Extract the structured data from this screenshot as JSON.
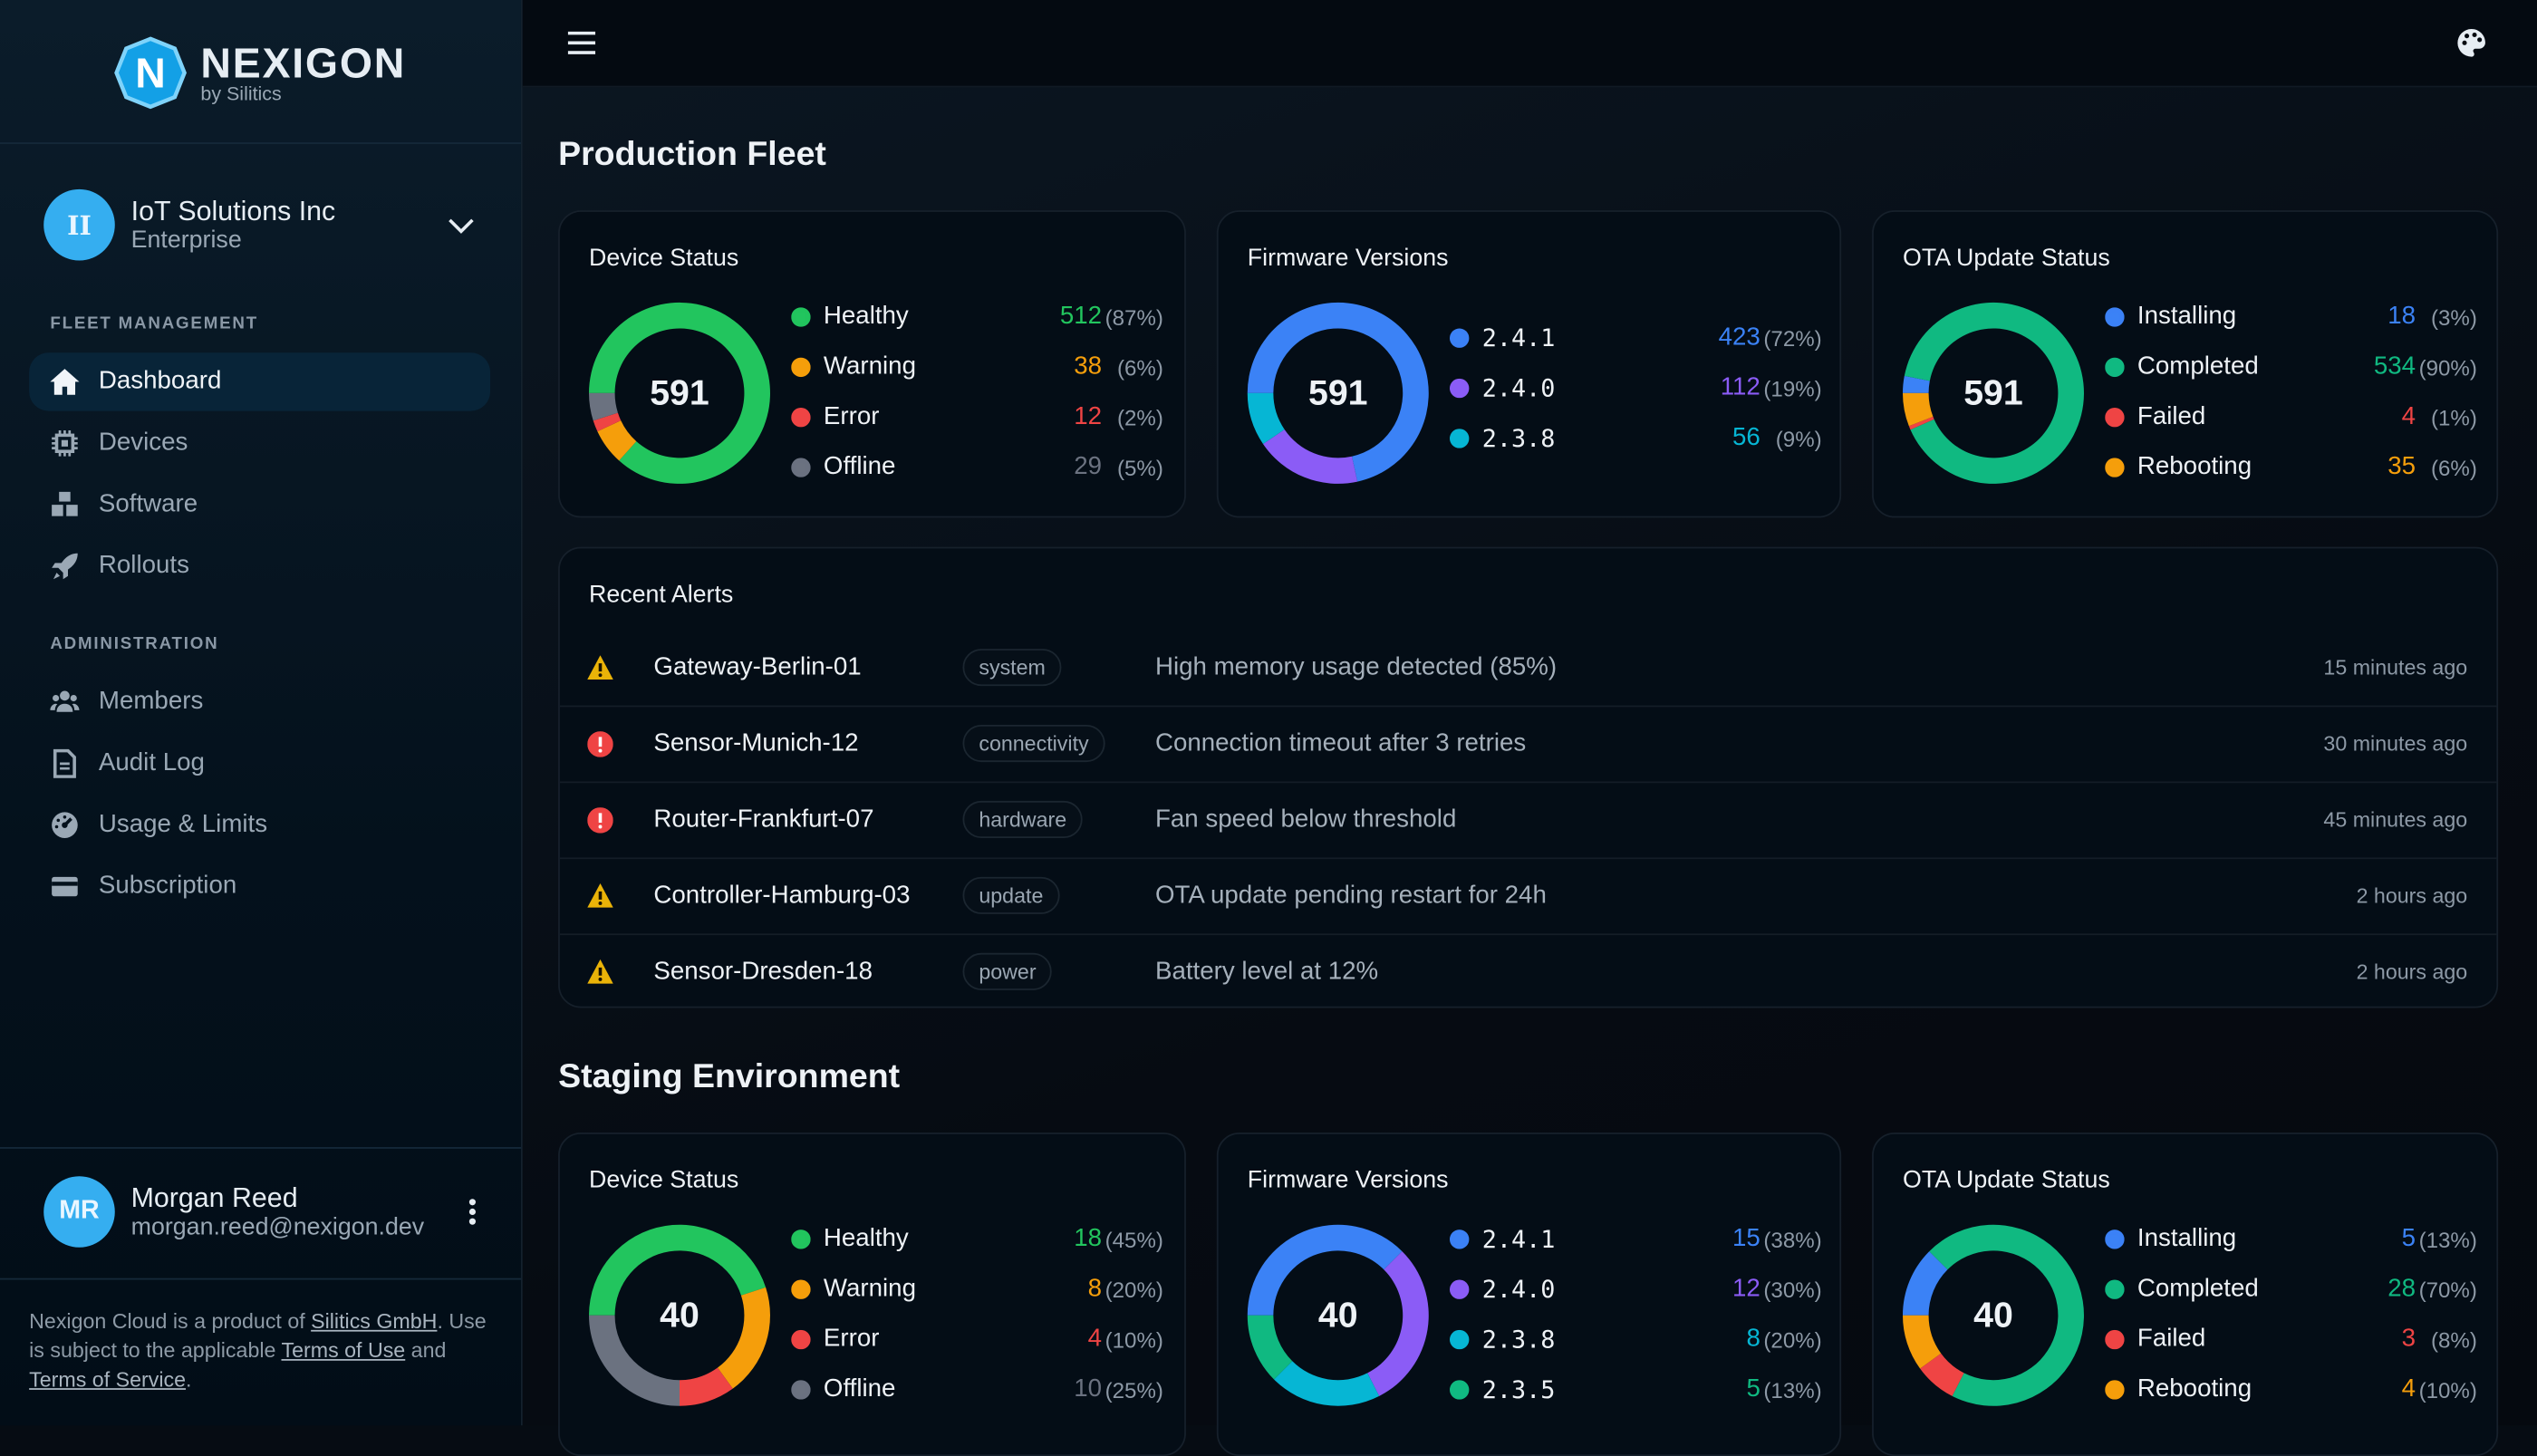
{
  "brand": {
    "name": "NEXIGON",
    "sub": "by Silitics",
    "logo_letter": "N"
  },
  "org": {
    "initials": "II",
    "name": "IoT Solutions Inc",
    "plan": "Enterprise"
  },
  "sidebar": {
    "sections": [
      {
        "label": "FLEET MANAGEMENT",
        "items": [
          {
            "label": "Dashboard",
            "icon": "home-icon",
            "active": true
          },
          {
            "label": "Devices",
            "icon": "chip-icon"
          },
          {
            "label": "Software",
            "icon": "cubes-icon"
          },
          {
            "label": "Rollouts",
            "icon": "rocket-icon"
          }
        ]
      },
      {
        "label": "ADMINISTRATION",
        "items": [
          {
            "label": "Members",
            "icon": "users-icon"
          },
          {
            "label": "Audit Log",
            "icon": "file-icon"
          },
          {
            "label": "Usage & Limits",
            "icon": "gauge-icon"
          },
          {
            "label": "Subscription",
            "icon": "credit-card-icon"
          }
        ]
      }
    ]
  },
  "user": {
    "initials": "MR",
    "name": "Morgan Reed",
    "email": "morgan.reed@nexigon.dev"
  },
  "legal": {
    "t1": "Nexigon Cloud is a product of ",
    "l1": "Silitics GmbH",
    "t2": ". Use is subject to the applicable ",
    "l2": "Terms of Use",
    "t3": " and ",
    "l3": "Terms of Service",
    "t4": "."
  },
  "colors": {
    "accent": "#35aef0",
    "green": "#22c55e",
    "orange": "#f59e0b",
    "red": "#ef4444",
    "gray": "#6b7280",
    "blue": "#3b82f6",
    "purple": "#8b5cf6",
    "cyan": "#06b6d4",
    "emerald": "#10b981"
  },
  "environments": [
    {
      "title": "Production Fleet",
      "cards": [
        {
          "title": "Device Status",
          "total": "591",
          "mono": false,
          "items": [
            {
              "label": "Healthy",
              "value": 512,
              "pct": "(87%)",
              "color": "#22c55e"
            },
            {
              "label": "Warning",
              "value": 38,
              "pct": "(6%)",
              "color": "#f59e0b"
            },
            {
              "label": "Error",
              "value": 12,
              "pct": "(2%)",
              "color": "#ef4444"
            },
            {
              "label": "Offline",
              "value": 29,
              "pct": "(5%)",
              "color": "#6b7280"
            }
          ]
        },
        {
          "title": "Firmware Versions",
          "total": "591",
          "mono": true,
          "items": [
            {
              "label": "2.4.1",
              "value": 423,
              "pct": "(72%)",
              "color": "#3b82f6"
            },
            {
              "label": "2.4.0",
              "value": 112,
              "pct": "(19%)",
              "color": "#8b5cf6"
            },
            {
              "label": "2.3.8",
              "value": 56,
              "pct": "(9%)",
              "color": "#06b6d4"
            }
          ]
        },
        {
          "title": "OTA Update Status",
          "total": "591",
          "mono": false,
          "items": [
            {
              "label": "Installing",
              "value": 18,
              "pct": "(3%)",
              "color": "#3b82f6"
            },
            {
              "label": "Completed",
              "value": 534,
              "pct": "(90%)",
              "color": "#10b981"
            },
            {
              "label": "Failed",
              "value": 4,
              "pct": "(1%)",
              "color": "#ef4444"
            },
            {
              "label": "Rebooting",
              "value": 35,
              "pct": "(6%)",
              "color": "#f59e0b"
            }
          ]
        }
      ]
    },
    {
      "title": "Staging Environment",
      "cards": [
        {
          "title": "Device Status",
          "total": "40",
          "mono": false,
          "items": [
            {
              "label": "Healthy",
              "value": 18,
              "pct": "(45%)",
              "color": "#22c55e"
            },
            {
              "label": "Warning",
              "value": 8,
              "pct": "(20%)",
              "color": "#f59e0b"
            },
            {
              "label": "Error",
              "value": 4,
              "pct": "(10%)",
              "color": "#ef4444"
            },
            {
              "label": "Offline",
              "value": 10,
              "pct": "(25%)",
              "color": "#6b7280"
            }
          ]
        },
        {
          "title": "Firmware Versions",
          "total": "40",
          "mono": true,
          "items": [
            {
              "label": "2.4.1",
              "value": 15,
              "pct": "(38%)",
              "color": "#3b82f6"
            },
            {
              "label": "2.4.0",
              "value": 12,
              "pct": "(30%)",
              "color": "#8b5cf6"
            },
            {
              "label": "2.3.8",
              "value": 8,
              "pct": "(20%)",
              "color": "#06b6d4"
            },
            {
              "label": "2.3.5",
              "value": 5,
              "pct": "(13%)",
              "color": "#10b981"
            }
          ]
        },
        {
          "title": "OTA Update Status",
          "total": "40",
          "mono": false,
          "items": [
            {
              "label": "Installing",
              "value": 5,
              "pct": "(13%)",
              "color": "#3b82f6"
            },
            {
              "label": "Completed",
              "value": 28,
              "pct": "(70%)",
              "color": "#10b981"
            },
            {
              "label": "Failed",
              "value": 3,
              "pct": "(8%)",
              "color": "#ef4444"
            },
            {
              "label": "Rebooting",
              "value": 4,
              "pct": "(10%)",
              "color": "#f59e0b"
            }
          ]
        }
      ]
    }
  ],
  "alerts": {
    "title": "Recent Alerts",
    "items": [
      {
        "severity": "warning",
        "device": "Gateway-Berlin-01",
        "tag": "system",
        "message": "High memory usage detected (85%)",
        "time": "15 minutes ago"
      },
      {
        "severity": "error",
        "device": "Sensor-Munich-12",
        "tag": "connectivity",
        "message": "Connection timeout after 3 retries",
        "time": "30 minutes ago"
      },
      {
        "severity": "error",
        "device": "Router-Frankfurt-07",
        "tag": "hardware",
        "message": "Fan speed below threshold",
        "time": "45 minutes ago"
      },
      {
        "severity": "warning",
        "device": "Controller-Hamburg-03",
        "tag": "update",
        "message": "OTA update pending restart for 24h",
        "time": "2 hours ago"
      },
      {
        "severity": "warning",
        "device": "Sensor-Dresden-18",
        "tag": "power",
        "message": "Battery level at 12%",
        "time": "2 hours ago"
      }
    ]
  }
}
